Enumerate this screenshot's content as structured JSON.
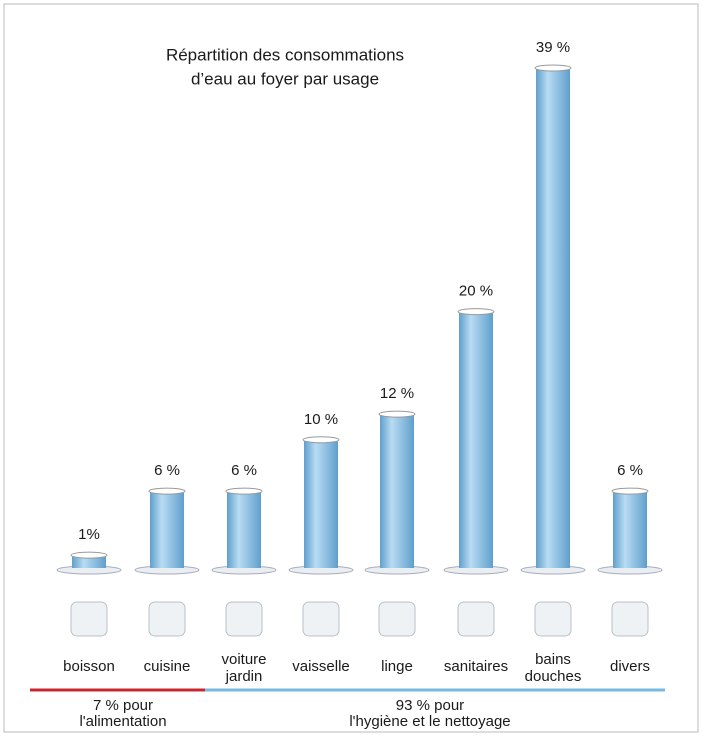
{
  "chart_data": {
    "type": "bar",
    "title": [
      "Répartition des consommations",
      "d’eau au foyer par usage"
    ],
    "categories": [
      "boisson",
      "cuisine",
      "voiture jardin",
      "vaisselle",
      "linge",
      "sanitaires",
      "bains douches",
      "divers"
    ],
    "values": [
      1,
      6,
      6,
      10,
      12,
      20,
      39,
      6
    ],
    "value_labels": [
      "1%",
      "6 %",
      "6 %",
      "10 %",
      "12 %",
      "20 %",
      "39 %",
      "6 %"
    ],
    "color": "#8ec3e6",
    "groups": [
      {
        "label": [
          "7 % pour",
          "l'alimentation"
        ],
        "color": "#c8282d"
      },
      {
        "label": [
          "93 % pour",
          "l'hygiène et le nettoyage"
        ],
        "color": "#7ab8e4"
      }
    ]
  }
}
